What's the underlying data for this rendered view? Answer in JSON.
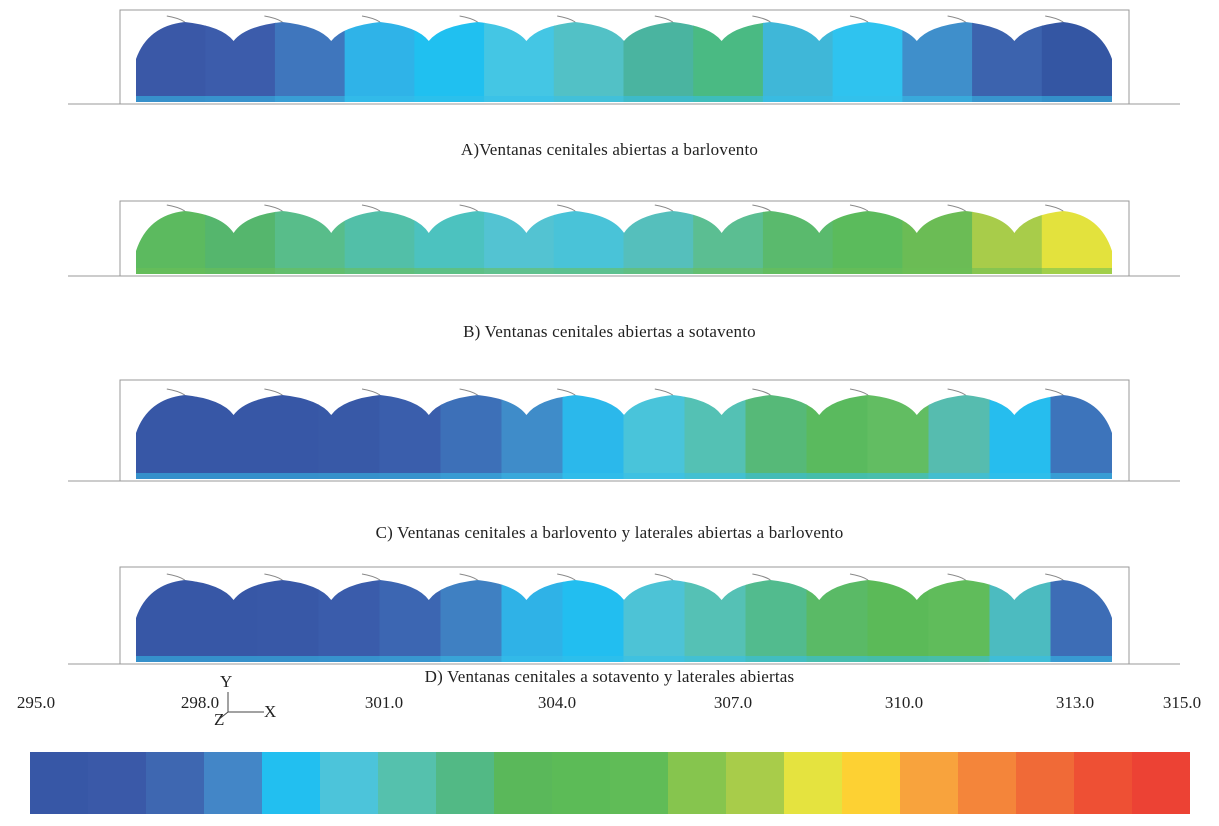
{
  "panels": [
    {
      "caption": "A)Ventanas cenitales abiertas a barlovento",
      "colors": [
        "#3a58a7",
        "#3c5cab",
        "#3f76bd",
        "#2fb3e8",
        "#20c0f0",
        "#44c6e4",
        "#52c1c6",
        "#4ab4a0",
        "#4aba83",
        "#3fb7d8",
        "#2fc3ef",
        "#3f8fcb",
        "#3c63ae",
        "#3456a3"
      ]
    },
    {
      "caption": "B) Ventanas cenitales abiertas a sotavento",
      "colors": [
        "#5cba5f",
        "#55b66d",
        "#58bd8a",
        "#52bfa8",
        "#4cc2bf",
        "#53c3d2",
        "#49c3d8",
        "#55bfbc",
        "#5bbe92",
        "#5aba6d",
        "#5bbb5c",
        "#6bbc55",
        "#a8cc4a",
        "#e3e23d"
      ]
    },
    {
      "caption": "C) Ventanas cenitales a barlovento y laterales abiertas a barlovento",
      "colors": [
        "#3757a6",
        "#3757a6",
        "#3757a6",
        "#3859a7",
        "#3a5eac",
        "#3d70b8",
        "#3f8cc9",
        "#2bb8eb",
        "#49c4da",
        "#54c1b4",
        "#56b978",
        "#5aba5e",
        "#62bd62",
        "#56bcaf",
        "#26bdee",
        "#3d74bb"
      ]
    },
    {
      "caption": "D) Ventanas cenitales a sotavento y laterales abiertas",
      "colors": [
        "#3757a6",
        "#3757a6",
        "#3858a7",
        "#3a5cab",
        "#3c66b2",
        "#3f80c2",
        "#2fb2e7",
        "#22bef0",
        "#4dc3d6",
        "#55c1b5",
        "#52bb8e",
        "#5aba66",
        "#5bba58",
        "#60bc5b",
        "#4cbbc0",
        "#3d6db6"
      ]
    }
  ],
  "colorbar": {
    "ticks": [
      "295.0",
      "298.0",
      "301.0",
      "304.0",
      "307.0",
      "310.0",
      "313.0",
      "315.0"
    ],
    "colors": [
      "#3757a6",
      "#3a59a8",
      "#3e67b1",
      "#4386c7",
      "#22bff0",
      "#4cc4da",
      "#55c1ad",
      "#52b985",
      "#5ab85a",
      "#5cbb57",
      "#60bc57",
      "#86c54e",
      "#a8cc4a",
      "#e5e33f",
      "#fdd133",
      "#f8a33d",
      "#f4853a",
      "#f06a37",
      "#ee5034",
      "#ec4234"
    ]
  },
  "axes": {
    "y": "Y",
    "x": "X",
    "z": "Z"
  }
}
